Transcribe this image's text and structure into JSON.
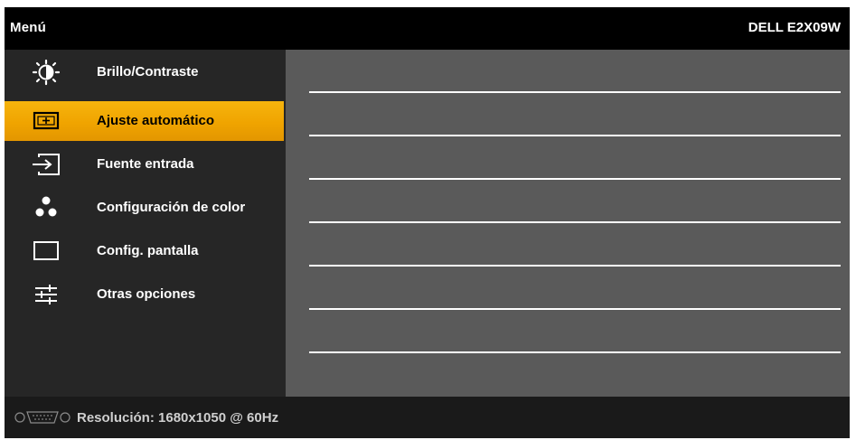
{
  "header": {
    "title": "Menú",
    "model": "DELL E2X09W"
  },
  "menu": {
    "items": [
      {
        "label": "Brillo/Contraste",
        "icon": "brightness-contrast-icon",
        "selected": false
      },
      {
        "label": "Ajuste  automático",
        "icon": "auto-adjust-icon",
        "selected": true
      },
      {
        "label": "Fuente entrada",
        "icon": "input-source-icon",
        "selected": false
      },
      {
        "label": "Configuración de color",
        "icon": "color-settings-icon",
        "selected": false
      },
      {
        "label": "Config. pantalla",
        "icon": "display-settings-icon",
        "selected": false
      },
      {
        "label": "Otras opciones",
        "icon": "other-settings-icon",
        "selected": false
      }
    ]
  },
  "footer": {
    "resolution": "Resolución: 1680x1050 @ 60Hz",
    "connector_icon": "vga-connector-icon"
  },
  "colors": {
    "highlight": "#f0a400",
    "menu_background": "#262626",
    "content_background": "#5a5a5a",
    "frame": "#000000"
  }
}
